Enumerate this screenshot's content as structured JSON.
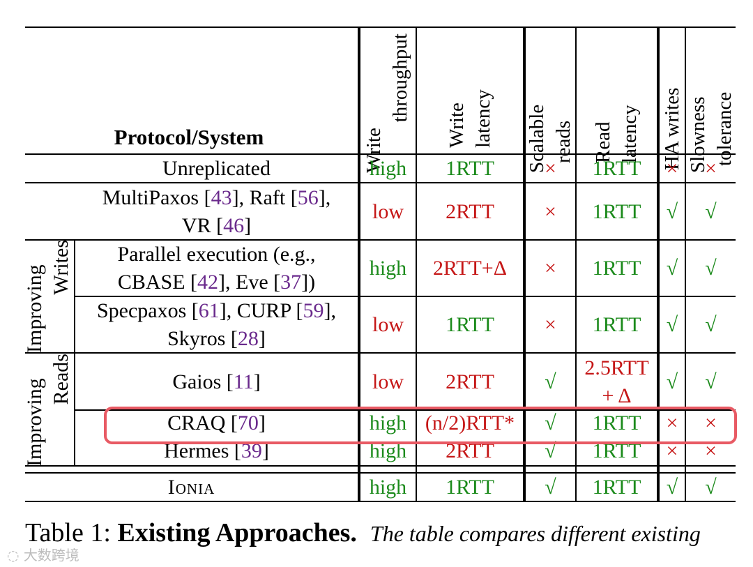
{
  "colors": {
    "green": "#1b8a1b",
    "red": "#c51616",
    "citation": "#6a2a8c",
    "highlight": "#e85a64"
  },
  "headers": {
    "protocol": "Protocol/System",
    "write_throughput": [
      "Write",
      "throughput"
    ],
    "write_latency": [
      "Write",
      "latency"
    ],
    "scalable_reads": [
      "Scalable",
      "reads"
    ],
    "read_latency": [
      "Read",
      "latency"
    ],
    "ha_writes": "HA writes",
    "slowness_tolerance": [
      "Slowness",
      "tolerance"
    ]
  },
  "groups": {
    "improving_writes": [
      "Improving",
      "Writes"
    ],
    "improving_reads": [
      "Improving",
      "Reads"
    ]
  },
  "rows": [
    {
      "name": [
        [
          "Unreplicated"
        ]
      ],
      "wt": "high",
      "wl": "1RTT",
      "sr": "×",
      "rl": "1RTT",
      "ha": "×",
      "st": "×"
    },
    {
      "name": [
        [
          "MultiPaxos [",
          "43",
          "], Raft [",
          "56",
          "],"
        ],
        [
          "VR [",
          "46",
          "]"
        ]
      ],
      "wt": "low",
      "wl": "2RTT",
      "sr": "×",
      "rl": "1RTT",
      "ha": "√",
      "st": "√"
    },
    {
      "name": [
        [
          "Parallel execution (e.g.,"
        ],
        [
          "CBASE [",
          "42",
          "], Eve [",
          "37",
          "])"
        ]
      ],
      "wt": "high",
      "wl": "2RTT+Δ",
      "sr": "×",
      "rl": "1RTT",
      "ha": "√",
      "st": "√"
    },
    {
      "name": [
        [
          "Specpaxos [",
          "61",
          "], CURP [",
          "59",
          "],"
        ],
        [
          "Skyros [",
          "28",
          "]"
        ]
      ],
      "wt": "low",
      "wl": "1RTT",
      "sr": "×",
      "rl": "1RTT",
      "ha": "√",
      "st": "√"
    },
    {
      "name": [
        [
          "Gaios [",
          "11",
          "]"
        ]
      ],
      "wt": "low",
      "wl": "2RTT",
      "sr": "√",
      "rl": [
        "2.5RTT",
        "+ Δ"
      ],
      "ha": "√",
      "st": "√"
    },
    {
      "name": [
        [
          "CRAQ [",
          "70",
          "]"
        ]
      ],
      "wt": "high",
      "wl": "(n/2)RTT*",
      "sr": "√",
      "rl": "1RTT",
      "ha": "×",
      "st": "×"
    },
    {
      "name": [
        [
          "Hermes [",
          "39",
          "]"
        ]
      ],
      "wt": "high",
      "wl": "2RTT",
      "sr": "√",
      "rl": "1RTT",
      "ha": "×",
      "st": "×"
    },
    {
      "name": [
        [
          "Ionia"
        ]
      ],
      "wt": "high",
      "wl": "1RTT",
      "sr": "√",
      "rl": "1RTT",
      "ha": "√",
      "st": "√"
    }
  ],
  "caption": {
    "label": "Table 1: ",
    "title": "Existing Approaches.",
    "text": "The table compares different existing"
  },
  "watermark": "大数跨境"
}
